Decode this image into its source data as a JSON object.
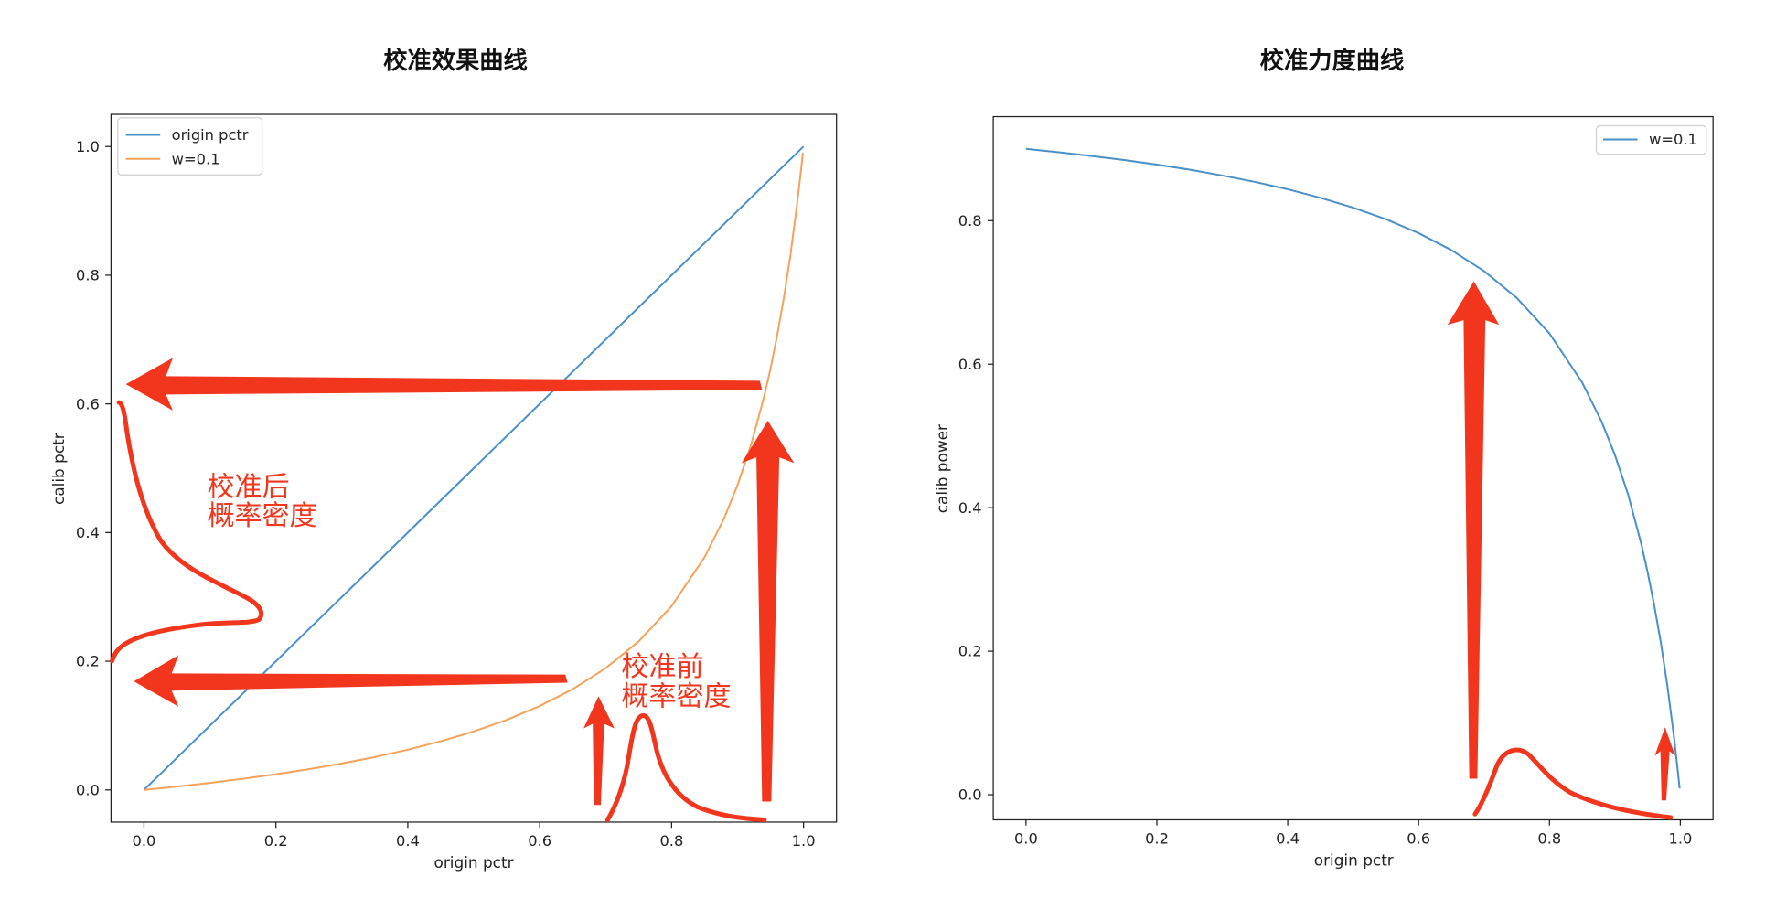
{
  "annotation_color": "#f2361d",
  "chart_data": [
    {
      "type": "line",
      "title": "校准效果曲线",
      "xlabel": "origin pctr",
      "ylabel": "calib pctr",
      "xlim": [
        -0.05,
        1.05
      ],
      "ylim": [
        -0.05,
        1.05
      ],
      "grid": false,
      "legend": "top-left",
      "x_ticks": {
        "values": [
          0,
          0.2,
          0.4,
          0.6,
          0.8,
          1.0
        ],
        "labels": [
          "0.0",
          "0.2",
          "0.4",
          "0.6",
          "0.8",
          "1.0"
        ]
      },
      "y_ticks": {
        "values": [
          0,
          0.2,
          0.4,
          0.6,
          0.8,
          1.0
        ],
        "labels": [
          "0.0",
          "0.2",
          "0.4",
          "0.6",
          "0.8",
          "1.0"
        ]
      },
      "series": [
        {
          "name": "origin pctr",
          "color": "#4a8fc8",
          "x": [
            0,
            1.0
          ],
          "y": [
            0,
            1.0
          ]
        },
        {
          "name": "w=0.1",
          "color": "#f5a25a",
          "x": [
            0,
            0.05,
            0.1,
            0.15,
            0.2,
            0.25,
            0.3,
            0.35,
            0.4,
            0.45,
            0.5,
            0.55,
            0.6,
            0.65,
            0.7,
            0.75,
            0.8,
            0.85,
            0.88,
            0.9,
            0.92,
            0.94,
            0.95,
            0.96,
            0.97,
            0.98,
            0.99,
            0.995,
            0.999
          ],
          "y": [
            0,
            0.0052,
            0.011,
            0.0173,
            0.0244,
            0.0323,
            0.0411,
            0.0511,
            0.0625,
            0.0756,
            0.0909,
            0.1089,
            0.1304,
            0.1566,
            0.1892,
            0.2308,
            0.2857,
            0.3617,
            0.4231,
            0.4737,
            0.5349,
            0.6104,
            0.6552,
            0.7059,
            0.7638,
            0.8305,
            0.9083,
            0.9522,
            0.9901
          ]
        }
      ],
      "annotations": [
        {
          "lines": [
            "校准后",
            "概率密度"
          ]
        },
        {
          "lines": [
            "校准前",
            "概率密度"
          ]
        }
      ]
    },
    {
      "type": "line",
      "title": "校准力度曲线",
      "xlabel": "origin pctr",
      "ylabel": "calib power",
      "xlim": [
        -0.05,
        1.05
      ],
      "ylim": [
        -0.035,
        0.945
      ],
      "grid": false,
      "legend": "top-right",
      "x_ticks": {
        "values": [
          0,
          0.2,
          0.4,
          0.6,
          0.8,
          1.0
        ],
        "labels": [
          "0.0",
          "0.2",
          "0.4",
          "0.6",
          "0.8",
          "1.0"
        ]
      },
      "y_ticks": {
        "values": [
          0,
          0.2,
          0.4,
          0.6,
          0.8
        ],
        "labels": [
          "0.0",
          "0.2",
          "0.4",
          "0.6",
          "0.8"
        ]
      },
      "series": [
        {
          "name": "w=0.1",
          "color": "#4a8fc8",
          "x": [
            0,
            0.05,
            0.1,
            0.15,
            0.2,
            0.25,
            0.3,
            0.35,
            0.4,
            0.45,
            0.5,
            0.55,
            0.6,
            0.65,
            0.7,
            0.75,
            0.8,
            0.85,
            0.88,
            0.9,
            0.92,
            0.94,
            0.95,
            0.96,
            0.97,
            0.98,
            0.99,
            0.995,
            0.999
          ],
          "y": [
            0.9,
            0.8953,
            0.8901,
            0.8844,
            0.878,
            0.871,
            0.863,
            0.854,
            0.8438,
            0.8319,
            0.8182,
            0.802,
            0.7826,
            0.759,
            0.7297,
            0.6923,
            0.6429,
            0.5745,
            0.5192,
            0.4737,
            0.4186,
            0.3506,
            0.3103,
            0.2647,
            0.2126,
            0.1525,
            0.0826,
            0.0431,
            0.0089
          ]
        }
      ]
    }
  ]
}
